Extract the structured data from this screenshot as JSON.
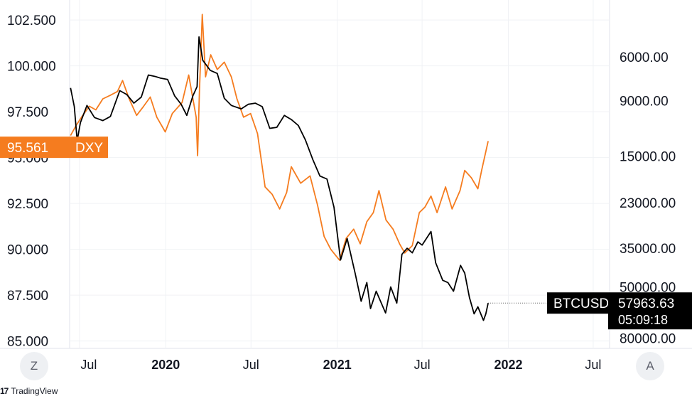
{
  "chart_data": {
    "type": "line",
    "x_ticks": [
      {
        "label": "Jul",
        "date": "2019-07-01",
        "bold": false
      },
      {
        "label": "2020",
        "date": "2020-01-01",
        "bold": true
      },
      {
        "label": "Jul",
        "date": "2020-07-01",
        "bold": false
      },
      {
        "label": "2021",
        "date": "2021-01-01",
        "bold": true
      },
      {
        "label": "Jul",
        "date": "2021-07-01",
        "bold": false
      },
      {
        "label": "2022",
        "date": "2022-01-01",
        "bold": true
      },
      {
        "label": "Jul",
        "date": "2022-07-01",
        "bold": false
      }
    ],
    "xlim": [
      "2019-06-10",
      "2022-08-05"
    ],
    "left_axis": {
      "ticks": [
        "102.500",
        "100.000",
        "97.500",
        "95.000",
        "92.500",
        "90.000",
        "87.500",
        "85.000"
      ],
      "ylim": [
        84.6,
        103.2
      ]
    },
    "right_axis": {
      "scale": "log",
      "inverted": true,
      "ticks": [
        "6000.00",
        "9000.00",
        "15000.00",
        "23000.00",
        "35000.00",
        "50000.00",
        "80000.00"
      ],
      "ylim": [
        3800,
        88000
      ]
    },
    "grid": true,
    "series": [
      {
        "name": "DXY",
        "axis": "left",
        "color": "#f57c1f",
        "last_value": "95.561",
        "points": [
          [
            "2019-06-12",
            96.2
          ],
          [
            "2019-06-25",
            96.8
          ],
          [
            "2019-07-08",
            97.3
          ],
          [
            "2019-07-22",
            97.8
          ],
          [
            "2019-08-05",
            97.6
          ],
          [
            "2019-08-20",
            98.2
          ],
          [
            "2019-09-05",
            98.4
          ],
          [
            "2019-09-20",
            98.6
          ],
          [
            "2019-10-01",
            99.2
          ],
          [
            "2019-10-15",
            98.2
          ],
          [
            "2019-10-31",
            97.3
          ],
          [
            "2019-11-15",
            97.8
          ],
          [
            "2019-11-29",
            98.3
          ],
          [
            "2019-12-13",
            97.2
          ],
          [
            "2019-12-31",
            96.4
          ],
          [
            "2020-01-15",
            97.4
          ],
          [
            "2020-02-05",
            98.0
          ],
          [
            "2020-02-19",
            99.5
          ],
          [
            "2020-03-06",
            97.2
          ],
          [
            "2020-03-09",
            95.1
          ],
          [
            "2020-03-13",
            98.6
          ],
          [
            "2020-03-19",
            102.8
          ],
          [
            "2020-03-26",
            99.4
          ],
          [
            "2020-04-06",
            100.6
          ],
          [
            "2020-04-20",
            99.8
          ],
          [
            "2020-05-05",
            100.2
          ],
          [
            "2020-05-20",
            99.4
          ],
          [
            "2020-06-01",
            98.2
          ],
          [
            "2020-06-15",
            97.2
          ],
          [
            "2020-06-30",
            97.4
          ],
          [
            "2020-07-15",
            96.3
          ],
          [
            "2020-07-31",
            93.4
          ],
          [
            "2020-08-15",
            93.0
          ],
          [
            "2020-08-31",
            92.2
          ],
          [
            "2020-09-15",
            93.1
          ],
          [
            "2020-09-25",
            94.5
          ],
          [
            "2020-10-15",
            93.6
          ],
          [
            "2020-11-04",
            94.0
          ],
          [
            "2020-11-20",
            92.4
          ],
          [
            "2020-12-04",
            90.7
          ],
          [
            "2020-12-18",
            90.0
          ],
          [
            "2021-01-06",
            89.4
          ],
          [
            "2021-01-20",
            90.6
          ],
          [
            "2021-02-05",
            91.1
          ],
          [
            "2021-02-19",
            90.3
          ],
          [
            "2021-03-05",
            91.5
          ],
          [
            "2021-03-19",
            92.0
          ],
          [
            "2021-03-31",
            93.2
          ],
          [
            "2021-04-15",
            91.6
          ],
          [
            "2021-04-30",
            91.1
          ],
          [
            "2021-05-14",
            90.3
          ],
          [
            "2021-05-25",
            89.8
          ],
          [
            "2021-06-10",
            90.2
          ],
          [
            "2021-06-25",
            92.0
          ],
          [
            "2021-07-07",
            92.3
          ],
          [
            "2021-07-20",
            92.9
          ],
          [
            "2021-08-02",
            92.0
          ],
          [
            "2021-08-20",
            93.4
          ],
          [
            "2021-09-03",
            92.2
          ],
          [
            "2021-09-20",
            93.2
          ],
          [
            "2021-09-30",
            94.3
          ],
          [
            "2021-10-14",
            93.9
          ],
          [
            "2021-10-28",
            93.3
          ],
          [
            "2021-11-05",
            94.3
          ],
          [
            "2021-11-12",
            95.1
          ],
          [
            "2021-11-19",
            95.9
          ]
        ]
      },
      {
        "name": "BTCUSD",
        "axis": "right",
        "color": "#000000",
        "last_value": "57963.63",
        "countdown": "05:09:18",
        "points": [
          [
            "2019-06-12",
            8000
          ],
          [
            "2019-06-20",
            9500
          ],
          [
            "2019-06-26",
            13000
          ],
          [
            "2019-07-03",
            11000
          ],
          [
            "2019-07-17",
            9400
          ],
          [
            "2019-08-02",
            10500
          ],
          [
            "2019-08-20",
            10800
          ],
          [
            "2019-09-05",
            10400
          ],
          [
            "2019-09-25",
            8200
          ],
          [
            "2019-10-10",
            8500
          ],
          [
            "2019-10-25",
            9200
          ],
          [
            "2019-11-10",
            8700
          ],
          [
            "2019-11-25",
            7100
          ],
          [
            "2019-12-10",
            7200
          ],
          [
            "2019-12-20",
            7300
          ],
          [
            "2020-01-05",
            7400
          ],
          [
            "2020-01-20",
            8600
          ],
          [
            "2020-02-03",
            9300
          ],
          [
            "2020-02-15",
            10300
          ],
          [
            "2020-02-28",
            8600
          ],
          [
            "2020-03-08",
            7900
          ],
          [
            "2020-03-12",
            5000
          ],
          [
            "2020-03-20",
            6200
          ],
          [
            "2020-04-05",
            6800
          ],
          [
            "2020-04-20",
            7000
          ],
          [
            "2020-05-05",
            8800
          ],
          [
            "2020-05-20",
            9400
          ],
          [
            "2020-06-10",
            9700
          ],
          [
            "2020-06-25",
            9300
          ],
          [
            "2020-07-10",
            9200
          ],
          [
            "2020-07-25",
            9500
          ],
          [
            "2020-08-10",
            11600
          ],
          [
            "2020-08-25",
            11500
          ],
          [
            "2020-09-10",
            10300
          ],
          [
            "2020-09-25",
            10700
          ],
          [
            "2020-10-10",
            11300
          ],
          [
            "2020-10-25",
            12900
          ],
          [
            "2020-11-10",
            15500
          ],
          [
            "2020-11-25",
            18000
          ],
          [
            "2020-12-10",
            18500
          ],
          [
            "2020-12-25",
            24000
          ],
          [
            "2021-01-08",
            39000
          ],
          [
            "2021-01-22",
            32000
          ],
          [
            "2021-02-08",
            44000
          ],
          [
            "2021-02-21",
            57000
          ],
          [
            "2021-03-05",
            48000
          ],
          [
            "2021-03-13",
            61000
          ],
          [
            "2021-03-25",
            52000
          ],
          [
            "2021-04-14",
            63500
          ],
          [
            "2021-04-25",
            50000
          ],
          [
            "2021-05-08",
            58000
          ],
          [
            "2021-05-19",
            37000
          ],
          [
            "2021-05-30",
            35000
          ],
          [
            "2021-06-10",
            36500
          ],
          [
            "2021-06-22",
            33000
          ],
          [
            "2021-07-01",
            34000
          ],
          [
            "2021-07-20",
            30000
          ],
          [
            "2021-07-30",
            40000
          ],
          [
            "2021-08-14",
            47000
          ],
          [
            "2021-08-25",
            48000
          ],
          [
            "2021-09-06",
            52000
          ],
          [
            "2021-09-21",
            41000
          ],
          [
            "2021-09-30",
            44000
          ],
          [
            "2021-10-10",
            55000
          ],
          [
            "2021-10-20",
            64000
          ],
          [
            "2021-10-28",
            60000
          ],
          [
            "2021-11-09",
            68000
          ],
          [
            "2021-11-14",
            64000
          ],
          [
            "2021-11-19",
            57963
          ]
        ]
      }
    ]
  },
  "controls": {
    "left_button": "Z",
    "right_button": "A"
  },
  "brand": {
    "logo": "17",
    "name": "TradingView"
  }
}
